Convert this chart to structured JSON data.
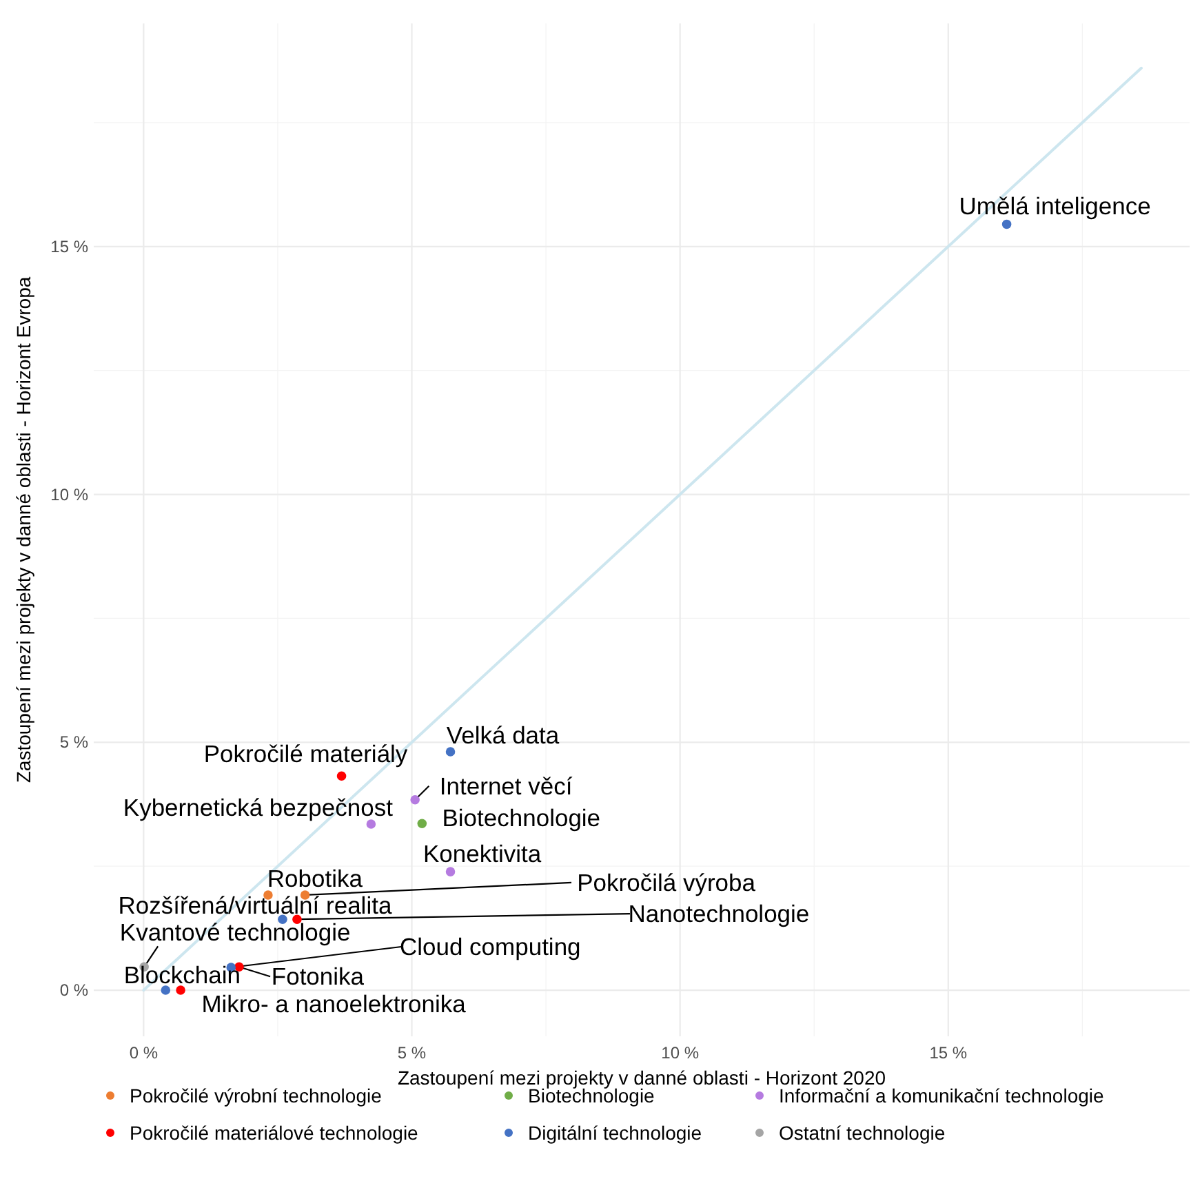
{
  "chart_data": {
    "type": "scatter",
    "xlabel": "Zastoupení mezi projekty v danné oblasti - Horizont 2020",
    "ylabel": "Zastoupení mezi projekty v danné oblasti - Horizont Evropa",
    "xlim": [
      -0.93,
      19.5
    ],
    "ylim": [
      -0.93,
      19.5
    ],
    "xticks": [
      {
        "value": 0,
        "label": "0 %"
      },
      {
        "value": 5,
        "label": "5 %"
      },
      {
        "value": 10,
        "label": "10 %"
      },
      {
        "value": 15,
        "label": "15 %"
      }
    ],
    "yticks": [
      {
        "value": 0,
        "label": "0 %"
      },
      {
        "value": 5,
        "label": "5 %"
      },
      {
        "value": 10,
        "label": "10 %"
      },
      {
        "value": 15,
        "label": "15 %"
      }
    ],
    "grid": true,
    "legend": "bottom",
    "marker": "circle",
    "series": [
      {
        "type": "line",
        "marker": "none",
        "color": "#cde6ef",
        "x": [
          0,
          18.6
        ],
        "values": [
          0,
          18.6
        ]
      },
      {
        "name": "Pokročilé výrobní technologie",
        "color": "#ed7d31",
        "x": [
          2.32,
          3.01
        ],
        "values": [
          1.92,
          1.92
        ]
      },
      {
        "name": "Pokročilé materiálové technologie",
        "color": "#ff0000",
        "x": [
          3.69,
          2.86,
          1.78,
          0.69
        ],
        "values": [
          4.32,
          1.43,
          0.47,
          0
        ]
      },
      {
        "name": "Biotechnologie",
        "color": "#70ad47",
        "x": [
          5.19
        ],
        "values": [
          3.36
        ]
      },
      {
        "name": "Digitální technologie",
        "color": "#4472c4",
        "x": [
          16.09,
          5.72,
          2.59,
          1.63,
          0.41
        ],
        "values": [
          15.45,
          4.81,
          1.43,
          0.46,
          0
        ]
      },
      {
        "name": "Informační a komunikační technologie",
        "color": "#b57be0",
        "x": [
          5.06,
          4.24,
          5.72
        ],
        "values": [
          3.84,
          3.35,
          2.39
        ]
      },
      {
        "name": "Ostatní technologie",
        "color": "#a5a5a5",
        "x": [
          0.01
        ],
        "values": [
          0.47
        ]
      }
    ],
    "annotations": [
      {
        "text": "Umělá inteligence",
        "x": 16.09,
        "y": 15.45
      },
      {
        "text": "Velká data",
        "x": 5.72,
        "y": 4.81
      },
      {
        "text": "Pokročilé materiály",
        "x": 3.69,
        "y": 4.32
      },
      {
        "text": "Internet věcí",
        "x": 5.06,
        "y": 3.84
      },
      {
        "text": "Biotechnologie",
        "x": 5.19,
        "y": 3.36
      },
      {
        "text": "Kybernetická bezpečnost",
        "x": 4.24,
        "y": 3.35
      },
      {
        "text": "Konektivita",
        "x": 5.72,
        "y": 2.39
      },
      {
        "text": "Robotika",
        "x": 2.32,
        "y": 1.92
      },
      {
        "text": "Pokročilá výroba",
        "x": 3.01,
        "y": 1.92
      },
      {
        "text": "Rozšířená/virtuální realita",
        "x": 2.59,
        "y": 1.43
      },
      {
        "text": "Nanotechnologie",
        "x": 2.86,
        "y": 1.43
      },
      {
        "text": "Kvantové technologie",
        "x": 0.01,
        "y": 0.47
      },
      {
        "text": "Cloud computing",
        "x": 1.63,
        "y": 0.46
      },
      {
        "text": "Fotonika",
        "x": 1.78,
        "y": 0.47
      },
      {
        "text": "Blockchain",
        "x": 0.41,
        "y": 0
      },
      {
        "text": "Mikro- a nanoelektronika",
        "x": 0.69,
        "y": 0
      }
    ]
  }
}
